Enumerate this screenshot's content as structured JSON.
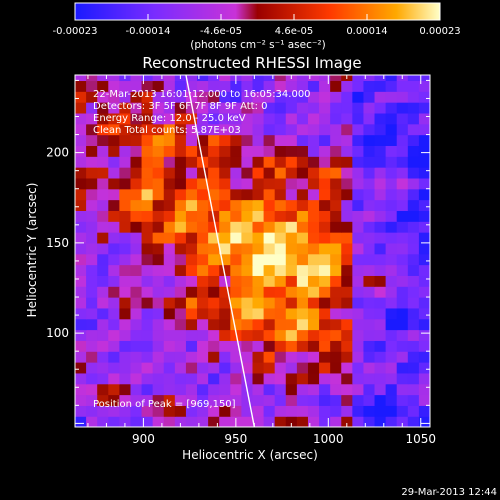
{
  "colorbar": {
    "ticks": [
      "-0.00023",
      "-0.00014",
      "-4.6e-05",
      "4.6e-05",
      "0.00014",
      "0.00023"
    ],
    "unit_label": "(photons cm⁻² s⁻¹ asec⁻²)",
    "colors": [
      "#1a1aff",
      "#7a2cff",
      "#c832d8",
      "#9a0000",
      "#ff3a00",
      "#ffa800",
      "#ffffc8"
    ]
  },
  "chart_data": {
    "type": "heatmap",
    "title": "Reconstructed RHESSI Image",
    "xlabel": "Heliocentric X (arcsec)",
    "ylabel": "Heliocentric Y (arcsec)",
    "xlim": [
      863,
      1055
    ],
    "ylim": [
      48,
      243
    ],
    "xticks": [
      900,
      950,
      1000,
      1050
    ],
    "yticks": [
      100,
      150,
      200
    ],
    "value_range": [
      -0.00023,
      0.00023
    ],
    "limb_line": [
      [
        923,
        243
      ],
      [
        960,
        48
      ]
    ],
    "annotations": [
      "22-Mar-2013 16:01:12.000 to 16:05:34.000",
      "Detectors: 3F 5F 6F 7F 8F 9F  Att: 0",
      "Energy Range: 12.0 - 25.0 keV",
      "Clean     Total counts: 5.87E+03"
    ],
    "position_label": "Position of Peak = [969,150]",
    "peak": [
      969,
      150
    ]
  },
  "footer": {
    "timestamp": "29-Mar-2013 12:44"
  }
}
